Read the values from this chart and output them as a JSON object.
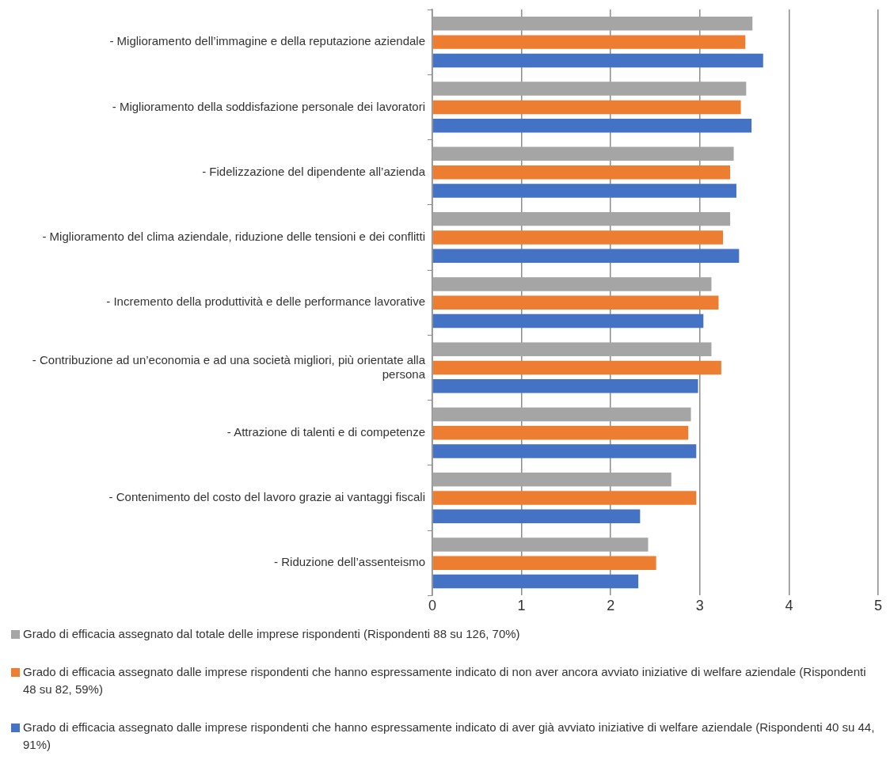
{
  "chart_data": {
    "type": "bar",
    "orientation": "horizontal",
    "categories": [
      "- Miglioramento dell’immagine e della reputazione aziendale",
      "- Miglioramento della soddisfazione personale dei lavoratori",
      "- Fidelizzazione del dipendente all’azienda",
      "- Miglioramento del clima aziendale, riduzione delle tensioni e dei conflitti",
      "- Incremento della produttività e delle performance lavorative",
      "- Contribuzione ad un’economia e ad una società migliori, più orientate alla persona",
      "- Attrazione di talenti e di competenze",
      "- Contenimento del costo del lavoro grazie ai vantaggi fiscali",
      "- Riduzione dell’assenteismo"
    ],
    "series": [
      {
        "name": "Grado di efficacia assegnato dal totale delle imprese rispondenti (Rispondenti 88 su 126, 70%)",
        "color": "#a5a5a5",
        "values": [
          3.59,
          3.52,
          3.38,
          3.34,
          3.13,
          3.13,
          2.9,
          2.68,
          2.42
        ]
      },
      {
        "name": "Grado di efficacia assegnato dalle imprese rispondenti che hanno espressamente indicato di non aver ancora avviato iniziative di welfare aziendale (Rispondenti 48 su 82, 59%)",
        "color": "#ed7d31",
        "values": [
          3.51,
          3.46,
          3.34,
          3.26,
          3.21,
          3.24,
          2.87,
          2.96,
          2.51
        ]
      },
      {
        "name": "Grado di efficacia assegnato dalle imprese rispondenti che hanno espressamente indicato di aver già avviato iniziative di welfare aziendale (Rispondenti 40 su 44, 91%)",
        "color": "#4472c4",
        "values": [
          3.71,
          3.58,
          3.41,
          3.44,
          3.04,
          2.98,
          2.96,
          2.33,
          2.31
        ]
      }
    ],
    "xlim": [
      0,
      5
    ],
    "xticks": [
      0,
      1,
      2,
      3,
      4,
      5
    ],
    "grid": "x",
    "legend": "bottom"
  }
}
